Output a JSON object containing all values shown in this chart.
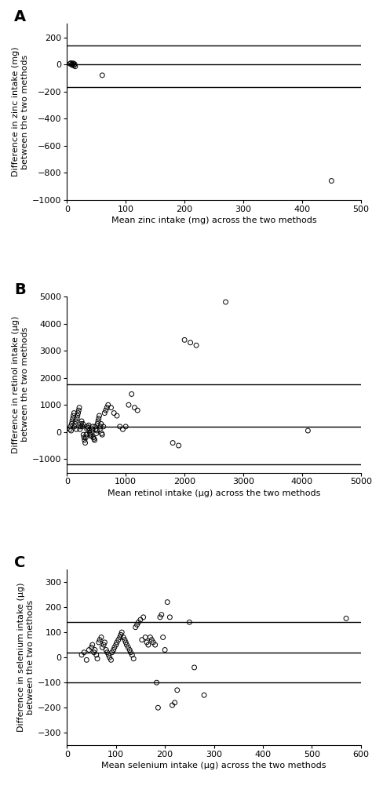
{
  "panel_A": {
    "label": "A",
    "xlabel": "Mean zinc intake (mg) across the two methods",
    "ylabel": "Difference in zinc intake (mg)\nbetween the two methods",
    "xlim": [
      0,
      500
    ],
    "ylim": [
      -1000,
      300
    ],
    "xticks": [
      0,
      100,
      200,
      300,
      400,
      500
    ],
    "yticks": [
      200,
      0,
      -200,
      -400,
      -600,
      -800,
      -1000
    ],
    "hlines": [
      140,
      0,
      -170
    ],
    "scatter_x": [
      5,
      7,
      8,
      9,
      10,
      11,
      12,
      13,
      14,
      60,
      450
    ],
    "scatter_y": [
      5,
      10,
      0,
      -5,
      3,
      8,
      -8,
      2,
      -15,
      -80,
      -860
    ]
  },
  "panel_B": {
    "label": "B",
    "xlabel": "Mean retinol intake (μg) across the two methods",
    "ylabel": "Difference in retinol intake (μg)\nbetween the two methods",
    "xlim": [
      0,
      5000
    ],
    "ylim": [
      -1500,
      5000
    ],
    "xticks": [
      0,
      1000,
      2000,
      3000,
      4000,
      5000
    ],
    "yticks": [
      5000,
      4000,
      3000,
      2000,
      1000,
      0,
      -1000
    ],
    "hlines": [
      1750,
      200,
      -1200
    ],
    "scatter_x": [
      50,
      60,
      70,
      80,
      90,
      100,
      110,
      120,
      130,
      140,
      150,
      160,
      170,
      180,
      190,
      200,
      210,
      220,
      230,
      240,
      250,
      260,
      270,
      280,
      290,
      300,
      310,
      320,
      330,
      340,
      350,
      360,
      370,
      380,
      390,
      400,
      410,
      420,
      430,
      440,
      450,
      460,
      470,
      480,
      490,
      500,
      510,
      520,
      530,
      540,
      550,
      560,
      570,
      580,
      590,
      600,
      620,
      640,
      660,
      680,
      700,
      750,
      800,
      850,
      900,
      950,
      1000,
      1050,
      1100,
      1150,
      1200,
      1800,
      1900,
      2000,
      2100,
      2200,
      2700,
      4100
    ],
    "scatter_y": [
      100,
      200,
      50,
      300,
      400,
      500,
      600,
      700,
      200,
      300,
      400,
      100,
      500,
      600,
      700,
      800,
      900,
      100,
      200,
      300,
      400,
      200,
      300,
      -100,
      -200,
      -300,
      -400,
      -200,
      -100,
      100,
      200,
      150,
      250,
      50,
      -50,
      -100,
      -150,
      0,
      100,
      200,
      -200,
      -250,
      -300,
      200,
      100,
      -50,
      50,
      300,
      400,
      500,
      600,
      100,
      200,
      300,
      -50,
      -100,
      200,
      700,
      800,
      900,
      1000,
      900,
      700,
      600,
      200,
      100,
      200,
      1000,
      1400,
      900,
      800,
      -400,
      -500,
      3400,
      3300,
      3200,
      4800,
      50
    ]
  },
  "panel_C": {
    "label": "C",
    "xlabel": "Mean selenium intake (μg) across the two methods",
    "ylabel": "Difference in selenium intake (μg)\nbetween the two methods",
    "xlim": [
      0,
      600
    ],
    "ylim": [
      -350,
      350
    ],
    "xticks": [
      0,
      100,
      200,
      300,
      400,
      500,
      600
    ],
    "yticks": [
      300,
      200,
      100,
      0,
      -100,
      -200,
      -300
    ],
    "hlines": [
      140,
      20,
      -100
    ],
    "scatter_x": [
      30,
      35,
      40,
      45,
      50,
      52,
      55,
      57,
      60,
      62,
      65,
      67,
      70,
      72,
      75,
      77,
      80,
      82,
      85,
      87,
      90,
      92,
      95,
      97,
      100,
      102,
      105,
      108,
      110,
      112,
      115,
      118,
      120,
      122,
      125,
      128,
      130,
      133,
      136,
      140,
      143,
      146,
      150,
      153,
      156,
      160,
      163,
      166,
      170,
      173,
      176,
      180,
      183,
      186,
      190,
      193,
      196,
      200,
      205,
      210,
      215,
      220,
      225,
      250,
      260,
      280,
      570
    ],
    "scatter_y": [
      10,
      20,
      -10,
      30,
      40,
      50,
      20,
      30,
      10,
      -5,
      60,
      70,
      80,
      40,
      50,
      60,
      30,
      20,
      10,
      0,
      -10,
      20,
      30,
      40,
      50,
      60,
      70,
      80,
      90,
      100,
      80,
      70,
      60,
      50,
      40,
      30,
      20,
      10,
      -5,
      120,
      130,
      140,
      150,
      70,
      160,
      80,
      60,
      50,
      80,
      70,
      60,
      50,
      -100,
      -200,
      160,
      170,
      80,
      30,
      220,
      160,
      -190,
      -180,
      -130,
      140,
      -40,
      -150,
      155
    ]
  },
  "marker_size": 18,
  "marker_facecolor": "none",
  "marker_edgecolor": "#000000",
  "marker_linewidth": 0.7,
  "hline_color": "#000000",
  "hline_linewidth": 1.0,
  "background_color": "#ffffff",
  "tick_fontsize": 8,
  "label_letter_fontsize": 14,
  "axis_label_fontsize": 8
}
